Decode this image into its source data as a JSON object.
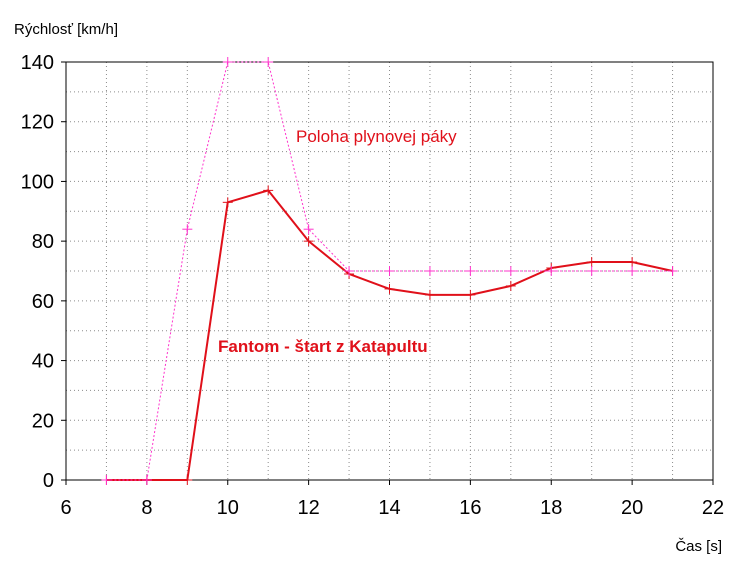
{
  "chart_data": {
    "type": "line",
    "ylabel": "Rýchlosť [km/h]",
    "xlabel": "Čas [s]",
    "xlim": [
      6,
      22
    ],
    "ylim": [
      0,
      140
    ],
    "xticks": [
      6,
      8,
      10,
      12,
      14,
      16,
      18,
      20,
      22
    ],
    "yticks": [
      0,
      20,
      40,
      60,
      80,
      100,
      120,
      140
    ],
    "grid": true,
    "annotations": [
      "Poloha plynovej páky",
      "Fantom - štart z Katapultu"
    ],
    "series": [
      {
        "name": "Fantom - štart z Katapultu",
        "color": "#e0101a",
        "style": "solid",
        "x": [
          7,
          8,
          9,
          10,
          11,
          12,
          13,
          14,
          15,
          16,
          17,
          18,
          19,
          20,
          21
        ],
        "y": [
          0,
          0,
          0,
          93,
          97,
          80,
          69,
          64,
          62,
          62,
          65,
          71,
          73,
          73,
          70
        ]
      },
      {
        "name": "Poloha plynovej páky",
        "color": "#ff33cc",
        "style": "dotted",
        "marker": "+",
        "x": [
          7,
          8,
          9,
          10,
          11,
          12,
          13,
          14,
          15,
          16,
          17,
          18,
          19,
          20,
          21
        ],
        "y": [
          0,
          0,
          84,
          140,
          140,
          84,
          70,
          70,
          70,
          70,
          70,
          70,
          70,
          70,
          70
        ]
      }
    ]
  }
}
